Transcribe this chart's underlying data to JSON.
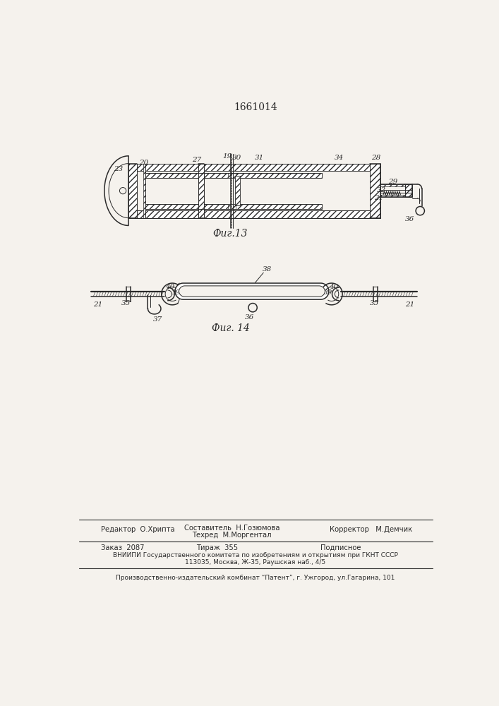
{
  "patent_number": "1661014",
  "fig13_label": "Фиг.13",
  "fig14_label": "Фиг. 14",
  "bg_color": "#f5f2ed",
  "line_color": "#2a2a2a",
  "footer_line1_left": "Редактор  О.Хрипта",
  "footer_comp1": "Составитель  Н.Гозюмова",
  "footer_comp2": "Техред  М.Моргентал",
  "footer_line1_right": "Корректор   М.Демчик",
  "footer_zakaz": "Заказ  2087",
  "footer_tirazh": "Тираж  355",
  "footer_podp": "Подписное",
  "footer_line3": "ВНИИПИ Государственного комитета по изобретениям и открытиям при ГКНТ СССР",
  "footer_line4": "113035, Москва, Ж-35, Раушская наб., 4/5",
  "footer_line5": "Производственно-издательский комбинат “Патент”, г. Ужгород, ул.Гагарина, 101"
}
